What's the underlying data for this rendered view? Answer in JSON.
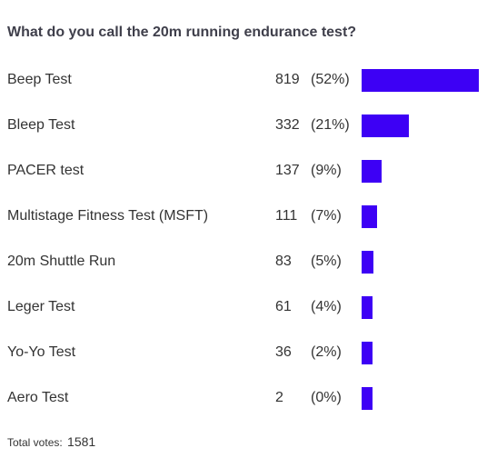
{
  "poll": {
    "title": "What do you call the 20m running endurance test?",
    "total_label": "Total votes:",
    "total_votes": "1581",
    "bar_color": "#3d00f5"
  },
  "chart_data": {
    "type": "bar",
    "orientation": "horizontal",
    "title": "What do you call the 20m running endurance test?",
    "categories": [
      "Beep Test",
      "Bleep Test",
      "PACER test",
      "Multistage Fitness Test (MSFT)",
      "20m Shuttle Run",
      "Leger Test",
      "Yo-Yo Test",
      "Aero Test"
    ],
    "values": [
      819,
      332,
      137,
      111,
      83,
      61,
      36,
      2
    ],
    "percent_labels": [
      "(52%)",
      "(21%)",
      "(9%)",
      "(7%)",
      "(5%)",
      "(4%)",
      "(2%)",
      "(0%)"
    ],
    "xlim": [
      0,
      819
    ],
    "grid": false
  }
}
